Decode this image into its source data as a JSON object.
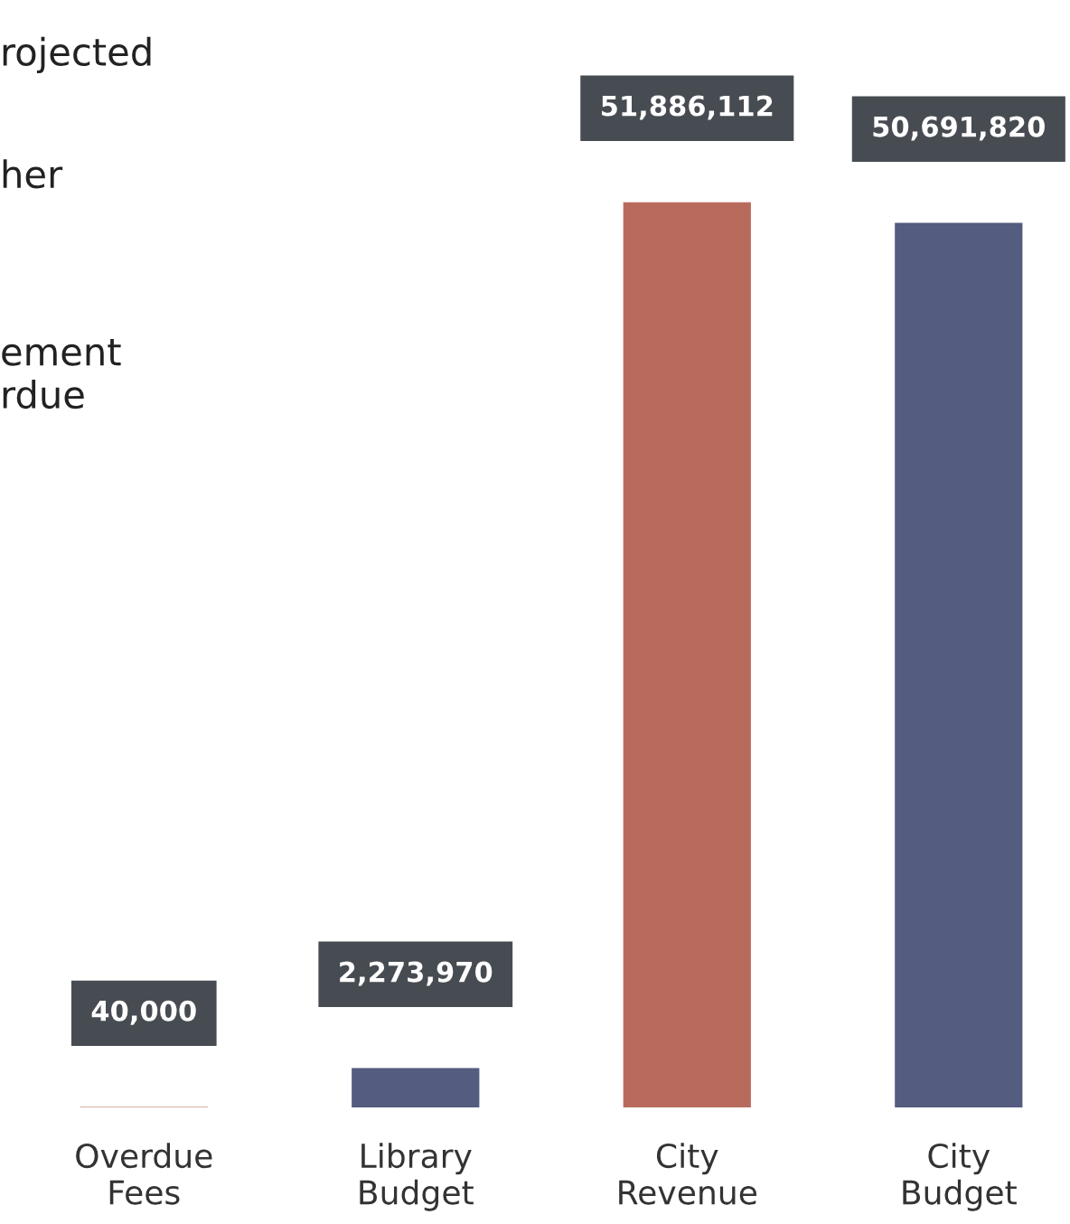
{
  "chart_data": {
    "type": "bar",
    "categories": [
      "Overdue\nFees",
      "Library\nBudget",
      "City\nRevenue",
      "City\nBudget"
    ],
    "values": [
      40000,
      2273970,
      51886112,
      50691820
    ],
    "colors": [
      "#b86b5c",
      "#545c80",
      "#b86b5c",
      "#545c80"
    ],
    "value_labels": [
      "40,000",
      "2,273,970",
      "51,886,112",
      "50,691,820"
    ],
    "annotations": [
      "rojected",
      "her",
      "ement",
      "rdue"
    ]
  }
}
